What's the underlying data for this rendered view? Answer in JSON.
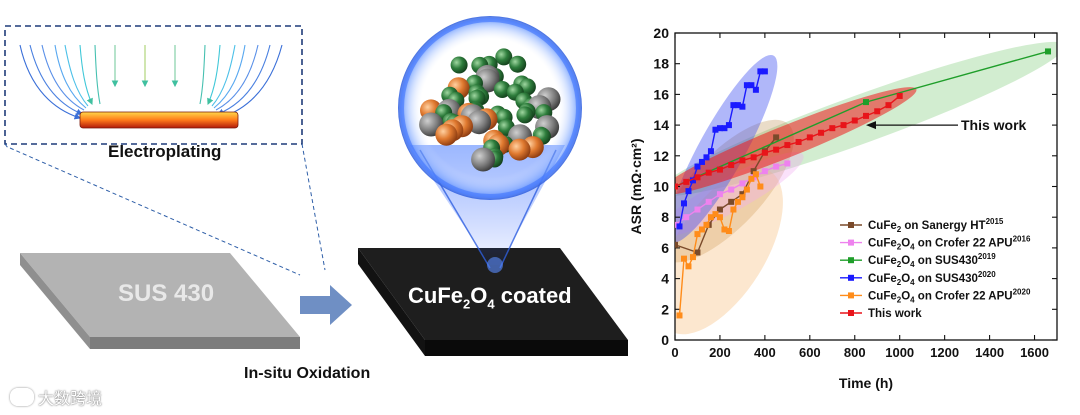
{
  "left_panel": {
    "inset_caption": "Electroplating",
    "substrate_label": "SUS 430",
    "process_label": "In-situ Oxidation",
    "coated_label_prefix": "CuFe",
    "coated_label_sub1": "2",
    "coated_label_mid": "O",
    "coated_label_sub2": "4",
    "coated_label_suffix": " coated"
  },
  "watermark": {
    "text": "大数跨境"
  },
  "chart_data": {
    "type": "line",
    "xlabel": "Time (h)",
    "ylabel": "ASR (mΩ·cm²)",
    "xlim": [
      0,
      1700
    ],
    "ylim": [
      0,
      20
    ],
    "xticks": [
      0,
      200,
      400,
      600,
      800,
      1000,
      1200,
      1400,
      1600
    ],
    "yticks": [
      0,
      2,
      4,
      6,
      8,
      10,
      12,
      14,
      16,
      18,
      20
    ],
    "annotation": "This work",
    "annotation_target": [
      850,
      14
    ],
    "legend_position": "bottom-right",
    "series": [
      {
        "name": "CuFe2 on Sanergy HT",
        "name_base": "CuFe",
        "name_sub": "2",
        "name_rest": " on Sanergy HT",
        "name_sup": "2015",
        "color": "#7a4a2a",
        "marker": "square",
        "x": [
          0,
          100,
          150,
          200,
          250,
          300,
          350,
          400,
          450
        ],
        "y": [
          6.2,
          5.7,
          7.5,
          8.5,
          9.0,
          9.5,
          11.0,
          12.3,
          13.2
        ]
      },
      {
        "name": "CuFe2O4 on Crofer 22 APU",
        "name_base": "CuFe",
        "name_sub": "2",
        "name_mid": "O",
        "name_sub2": "4",
        "name_rest": " on Crofer 22 APU",
        "name_sup": "2016",
        "color": "#ee82ee",
        "marker": "square",
        "x": [
          0,
          50,
          100,
          150,
          200,
          250,
          300,
          350,
          400,
          450,
          500
        ],
        "y": [
          7.5,
          8.0,
          8.5,
          9.0,
          9.5,
          9.8,
          10.2,
          10.6,
          11.0,
          11.3,
          11.5
        ]
      },
      {
        "name": "CuFe2O4 on SUS430",
        "name_base": "CuFe",
        "name_sub": "2",
        "name_mid": "O",
        "name_sub2": "4",
        "name_rest": " on SUS430",
        "name_sup": "2019",
        "color": "#1f9e2a",
        "marker": "square",
        "x": [
          0,
          850,
          1660
        ],
        "y": [
          10.0,
          15.5,
          18.8
        ]
      },
      {
        "name": "CuFe2O4 on SUS430",
        "name_base": "CuFe",
        "name_sub": "2",
        "name_mid": "O",
        "name_sub2": "4",
        "name_rest": " on SUS430",
        "name_sup": "2020",
        "color": "#1a1aff",
        "marker": "square",
        "x": [
          20,
          40,
          60,
          80,
          100,
          120,
          140,
          160,
          180,
          200,
          220,
          240,
          260,
          280,
          300,
          320,
          340,
          360,
          380,
          400
        ],
        "y": [
          7.4,
          8.9,
          9.7,
          10.4,
          11.3,
          11.6,
          11.9,
          12.3,
          13.7,
          13.8,
          13.8,
          14.0,
          15.3,
          15.3,
          15.2,
          16.6,
          16.6,
          16.3,
          17.5,
          17.5
        ]
      },
      {
        "name": "CuFe2O4 on Crofer 22 APU",
        "name_base": "CuFe",
        "name_sub": "2",
        "name_mid": "O",
        "name_sub2": "4",
        "name_rest": " on Crofer 22 APU",
        "name_sup": "2020",
        "color": "#ff8c1a",
        "marker": "square",
        "x": [
          20,
          40,
          60,
          80,
          100,
          120,
          140,
          160,
          180,
          200,
          220,
          240,
          260,
          280,
          300,
          320,
          340,
          360,
          380
        ],
        "y": [
          1.6,
          5.3,
          4.8,
          5.4,
          6.9,
          7.2,
          7.5,
          8.0,
          8.2,
          8.0,
          7.2,
          7.1,
          8.5,
          9.0,
          9.3,
          9.8,
          10.5,
          10.8,
          10.0
        ]
      },
      {
        "name": "This work",
        "name_base": "This work",
        "color": "#e8141a",
        "marker": "square",
        "x": [
          0,
          50,
          100,
          150,
          200,
          250,
          300,
          350,
          400,
          450,
          500,
          550,
          600,
          650,
          700,
          750,
          800,
          850,
          900,
          950,
          1000
        ],
        "y": [
          10.0,
          10.3,
          10.6,
          10.9,
          11.1,
          11.4,
          11.7,
          11.9,
          12.2,
          12.4,
          12.7,
          12.9,
          13.2,
          13.5,
          13.8,
          14.0,
          14.3,
          14.6,
          14.9,
          15.3,
          15.9
        ]
      }
    ]
  }
}
